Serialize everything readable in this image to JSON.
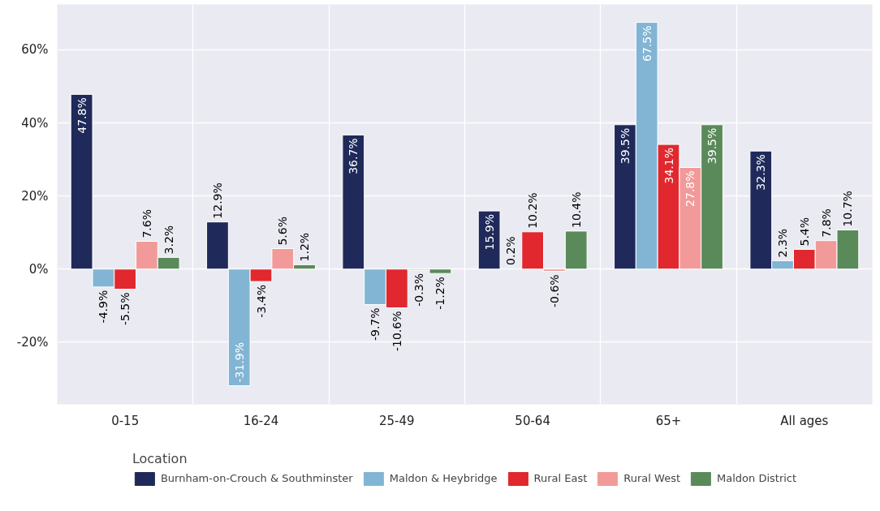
{
  "chart_data": {
    "type": "bar",
    "categories": [
      "0-15",
      "16-24",
      "25-49",
      "50-64",
      "65+",
      "All ages"
    ],
    "series": [
      {
        "name": "Burnham-on-Crouch & Southminster",
        "color": "#1f2a5a",
        "values": [
          47.8,
          12.9,
          36.7,
          15.9,
          39.5,
          32.3
        ],
        "value_labels": [
          "47.8%",
          "12.9%",
          "36.7%",
          "15.9%",
          "39.5%",
          "32.3%"
        ]
      },
      {
        "name": "Maldon & Heybridge",
        "color": "#82b5d4",
        "values": [
          -4.9,
          -31.9,
          -9.7,
          0.2,
          67.5,
          2.3
        ],
        "value_labels": [
          "-4.9%",
          "-31.9%",
          "-9.7%",
          "0.2%",
          "67.5%",
          "2.3%"
        ]
      },
      {
        "name": "Rural East",
        "color": "#e0282e",
        "values": [
          -5.5,
          -3.4,
          -10.6,
          10.2,
          34.1,
          5.4
        ],
        "value_labels": [
          "-5.5%",
          "-3.4%",
          "-10.6%",
          "10.2%",
          "34.1%",
          "5.4%"
        ]
      },
      {
        "name": "Rural West",
        "color": "#f29a9a",
        "values": [
          7.6,
          5.6,
          -0.3,
          -0.6,
          27.8,
          7.8
        ],
        "value_labels": [
          "7.6%",
          "5.6%",
          "-0.3%",
          "-0.6%",
          "27.8%",
          "7.8%"
        ]
      },
      {
        "name": "Maldon District",
        "color": "#5a8a5a",
        "values": [
          3.2,
          1.2,
          -1.2,
          10.4,
          39.5,
          10.7
        ],
        "value_labels": [
          "3.2%",
          "1.2%",
          "-1.2%",
          "10.4%",
          "39.5%",
          "10.7%"
        ]
      }
    ],
    "ylim": [
      -37,
      72.4
    ],
    "yticks": [
      {
        "value": -20,
        "label": "-20%"
      },
      {
        "value": 0,
        "label": "0%"
      },
      {
        "value": 20,
        "label": "20%"
      },
      {
        "value": 40,
        "label": "40%"
      },
      {
        "value": 60,
        "label": "60%"
      }
    ],
    "legend_title": "Location",
    "legend": "bottom",
    "grid": true
  }
}
